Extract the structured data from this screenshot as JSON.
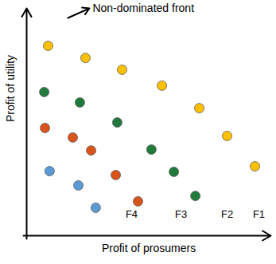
{
  "chart_data": {
    "type": "scatter",
    "x_label": "Profit of prosumers",
    "y_label": "Profit of utility",
    "xlim": [
      0,
      100
    ],
    "ylim": [
      0,
      100
    ],
    "tick_labels": false,
    "annotations": [
      {
        "text": "Non-dominated front"
      }
    ],
    "series": [
      {
        "name": "F1",
        "color": "#ffc000",
        "marker": "circle",
        "x": [
          8.8,
          24.1,
          39.1,
          55.4,
          70.7,
          82.1,
          93.5
        ],
        "y": [
          83.5,
          78.2,
          73.0,
          66.0,
          56.1,
          43.9,
          30.5
        ]
      },
      {
        "name": "F2",
        "color": "#1f7a3c",
        "marker": "circle",
        "x": [
          7.2,
          21.8,
          37.1,
          51.1,
          60.3,
          69.1
        ],
        "y": [
          63.2,
          58.6,
          49.8,
          37.9,
          28.1,
          17.5
        ]
      },
      {
        "name": "F3",
        "color": "#d9541a",
        "marker": "circle",
        "x": [
          7.5,
          18.9,
          26.4,
          36.5,
          45.6
        ],
        "y": [
          47.4,
          43.2,
          37.5,
          26.7,
          15.1
        ]
      },
      {
        "name": "F4",
        "color": "#5b9bd5",
        "marker": "circle",
        "x": [
          9.4,
          21.2,
          28.3
        ],
        "y": [
          28.4,
          22.1,
          12.3
        ]
      }
    ]
  }
}
